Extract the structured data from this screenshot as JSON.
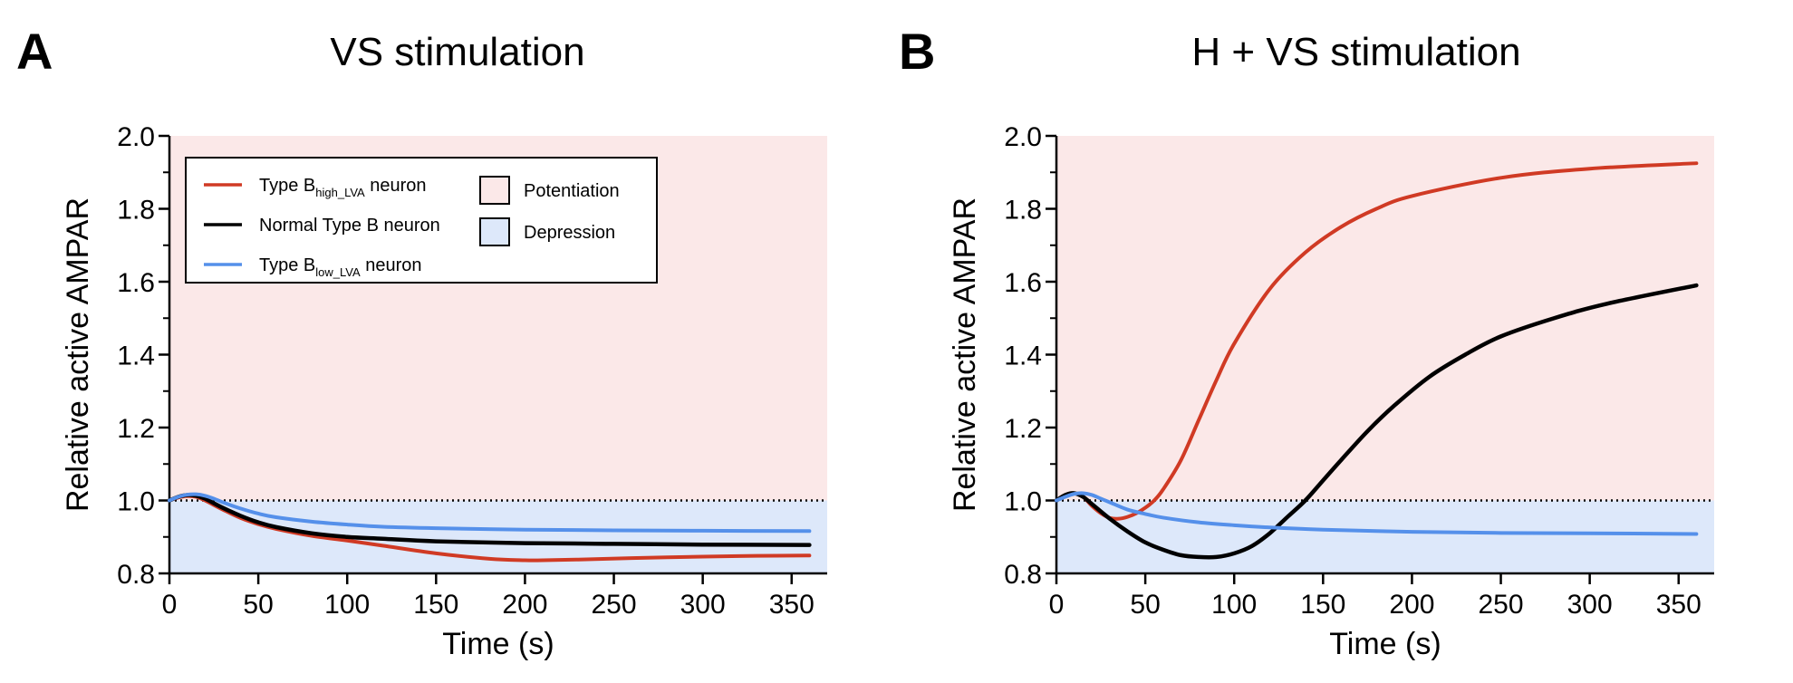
{
  "chart_data": [
    {
      "type": "line",
      "panel": "A",
      "title": "VS stimulation",
      "xlabel": "Time (s)",
      "ylabel": "Relative active AMPAR",
      "xlim": [
        0,
        370
      ],
      "ylim": [
        0.8,
        2.0
      ],
      "xticks": [
        0,
        50,
        100,
        150,
        200,
        250,
        300,
        350
      ],
      "yticks": [
        0.8,
        1.0,
        1.2,
        1.4,
        1.6,
        1.8,
        2.0
      ],
      "grid": false,
      "reference_line": 1.0,
      "regions": [
        {
          "name": "Potentiation",
          "from": 1.0,
          "to": 2.0,
          "color": "#fbe8e8"
        },
        {
          "name": "Depression",
          "from": 0.8,
          "to": 1.0,
          "color": "#dde8fa"
        }
      ],
      "legend": {
        "placement": "top-left",
        "entries": [
          {
            "series": 0,
            "text": "Type B",
            "sub": "high_LVA",
            "suffix": " neuron"
          },
          {
            "series": 1,
            "text": "Normal Type B neuron",
            "sub": "",
            "suffix": ""
          },
          {
            "series": 2,
            "text": "Type B",
            "sub": "low_LVA",
            "suffix": " neuron"
          }
        ],
        "region_entries": [
          {
            "label": "Potentiation",
            "color": "#fbe8e8"
          },
          {
            "label": "Depression",
            "color": "#dde8fa"
          }
        ]
      },
      "series": [
        {
          "name": "Type B high_LVA neuron",
          "color": "#d03a24",
          "x": [
            0,
            5,
            10,
            15,
            20,
            30,
            40,
            50,
            60,
            80,
            100,
            120,
            150,
            180,
            200,
            210,
            230,
            260,
            300,
            330,
            360
          ],
          "y": [
            1.0,
            1.008,
            1.012,
            1.01,
            1.0,
            0.975,
            0.952,
            0.935,
            0.922,
            0.903,
            0.89,
            0.876,
            0.855,
            0.84,
            0.836,
            0.836,
            0.838,
            0.842,
            0.846,
            0.848,
            0.849
          ]
        },
        {
          "name": "Normal Type B neuron",
          "color": "#000000",
          "x": [
            0,
            5,
            10,
            15,
            20,
            30,
            40,
            50,
            60,
            80,
            100,
            120,
            150,
            200,
            250,
            300,
            360
          ],
          "y": [
            1.0,
            1.01,
            1.015,
            1.013,
            1.005,
            0.98,
            0.958,
            0.94,
            0.927,
            0.91,
            0.9,
            0.895,
            0.888,
            0.883,
            0.881,
            0.879,
            0.878
          ]
        },
        {
          "name": "Type B low_LVA neuron",
          "color": "#5590ea",
          "x": [
            0,
            5,
            10,
            15,
            20,
            25,
            30,
            40,
            50,
            60,
            80,
            100,
            120,
            150,
            200,
            250,
            300,
            360
          ],
          "y": [
            1.0,
            1.01,
            1.016,
            1.017,
            1.013,
            1.005,
            0.995,
            0.978,
            0.964,
            0.954,
            0.942,
            0.934,
            0.928,
            0.924,
            0.92,
            0.918,
            0.917,
            0.916
          ]
        }
      ]
    },
    {
      "type": "line",
      "panel": "B",
      "title": "H + VS stimulation",
      "xlabel": "Time (s)",
      "ylabel": "Relative active AMPAR",
      "xlim": [
        0,
        370
      ],
      "ylim": [
        0.8,
        2.0
      ],
      "xticks": [
        0,
        50,
        100,
        150,
        200,
        250,
        300,
        350
      ],
      "yticks": [
        0.8,
        1.0,
        1.2,
        1.4,
        1.6,
        1.8,
        2.0
      ],
      "grid": false,
      "reference_line": 1.0,
      "regions": [
        {
          "name": "Potentiation",
          "from": 1.0,
          "to": 2.0,
          "color": "#fbe8e8"
        },
        {
          "name": "Depression",
          "from": 0.8,
          "to": 1.0,
          "color": "#dde8fa"
        }
      ],
      "series": [
        {
          "name": "Type B high_LVA neuron",
          "color": "#d03a24",
          "x": [
            0,
            5,
            10,
            15,
            20,
            25,
            30,
            35,
            40,
            45,
            50,
            55,
            60,
            70,
            80,
            90,
            100,
            120,
            140,
            160,
            180,
            200,
            250,
            300,
            360
          ],
          "y": [
            1.0,
            1.015,
            1.02,
            1.01,
            0.985,
            0.965,
            0.952,
            0.95,
            0.955,
            0.965,
            0.98,
            1.0,
            1.03,
            1.11,
            1.22,
            1.33,
            1.43,
            1.58,
            1.68,
            1.75,
            1.8,
            1.835,
            1.885,
            1.91,
            1.925
          ]
        },
        {
          "name": "Normal Type B neuron",
          "color": "#000000",
          "x": [
            0,
            5,
            10,
            15,
            20,
            30,
            40,
            50,
            60,
            70,
            80,
            90,
            100,
            110,
            120,
            130,
            140,
            150,
            160,
            175,
            190,
            210,
            230,
            250,
            280,
            310,
            360
          ],
          "y": [
            1.0,
            1.015,
            1.02,
            1.01,
            0.99,
            0.95,
            0.915,
            0.885,
            0.865,
            0.85,
            0.845,
            0.845,
            0.855,
            0.875,
            0.91,
            0.955,
            1.0,
            1.055,
            1.11,
            1.19,
            1.26,
            1.34,
            1.4,
            1.45,
            1.5,
            1.54,
            1.59
          ]
        },
        {
          "name": "Type B low_LVA neuron",
          "color": "#5590ea",
          "x": [
            0,
            5,
            10,
            15,
            20,
            25,
            30,
            40,
            50,
            60,
            80,
            100,
            120,
            150,
            200,
            250,
            300,
            360
          ],
          "y": [
            1.0,
            1.01,
            1.018,
            1.02,
            1.015,
            1.005,
            0.995,
            0.975,
            0.963,
            0.953,
            0.94,
            0.932,
            0.926,
            0.92,
            0.914,
            0.911,
            0.91,
            0.908
          ]
        }
      ]
    }
  ]
}
